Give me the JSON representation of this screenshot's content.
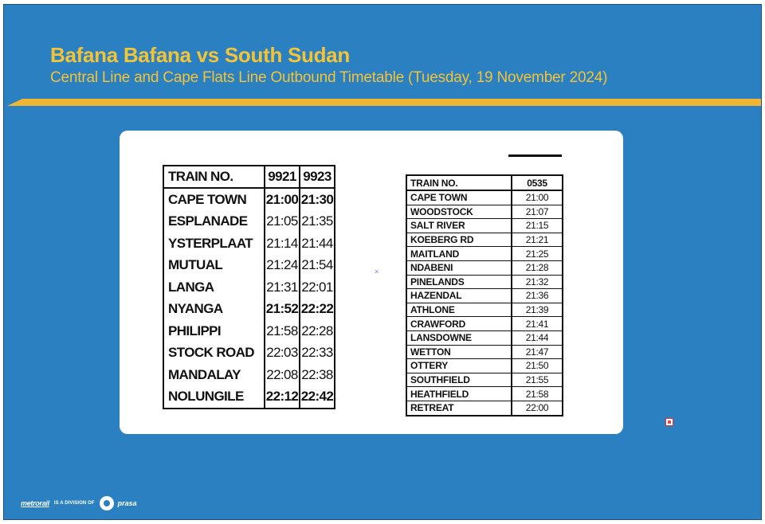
{
  "header": {
    "title": "Bafana Bafana vs South Sudan",
    "subtitle": "Central Line and Cape Flats Line Outbound Timetable (Tuesday, 19 November 2024)"
  },
  "central_line": {
    "header_label": "TRAIN NO.",
    "trains": [
      "9921",
      "9923"
    ],
    "rows": [
      {
        "station": "CAPE TOWN",
        "t1": "21:00",
        "t2": "21:30",
        "bold": true
      },
      {
        "station": "ESPLANADE",
        "t1": "21:05",
        "t2": "21:35",
        "bold": false
      },
      {
        "station": "YSTERPLAAT",
        "t1": "21:14",
        "t2": "21:44",
        "bold": false
      },
      {
        "station": "MUTUAL",
        "t1": "21:24",
        "t2": "21:54",
        "bold": false
      },
      {
        "station": "LANGA",
        "t1": "21:31",
        "t2": "22:01",
        "bold": false
      },
      {
        "station": "NYANGA",
        "t1": "21:52",
        "t2": "22:22",
        "bold": true
      },
      {
        "station": "PHILIPPI",
        "t1": "21:58",
        "t2": "22:28",
        "bold": false
      },
      {
        "station": "STOCK ROAD",
        "t1": "22:03",
        "t2": "22:33",
        "bold": false
      },
      {
        "station": "MANDALAY",
        "t1": "22:08",
        "t2": "22:38",
        "bold": false
      },
      {
        "station": "NOLUNGILE",
        "t1": "22:12",
        "t2": "22:42",
        "bold": true
      }
    ]
  },
  "cape_flats_line": {
    "header_label": "TRAIN NO.",
    "train": "0535",
    "rows": [
      {
        "station": "CAPE TOWN",
        "time": "21:00"
      },
      {
        "station": "WOODSTOCK",
        "time": "21:07"
      },
      {
        "station": "SALT RIVER",
        "time": "21:15"
      },
      {
        "station": "KOEBERG RD",
        "time": "21:21"
      },
      {
        "station": "MAITLAND",
        "time": "21:25"
      },
      {
        "station": "NDABENI",
        "time": "21:28"
      },
      {
        "station": "PINELANDS",
        "time": "21:32"
      },
      {
        "station": "HAZENDAL",
        "time": "21:36"
      },
      {
        "station": "ATHLONE",
        "time": "21:39"
      },
      {
        "station": "CRAWFORD",
        "time": "21:41"
      },
      {
        "station": "LANSDOWNE",
        "time": "21:44"
      },
      {
        "station": "WETTON",
        "time": "21:47"
      },
      {
        "station": "OTTERY",
        "time": "21:50"
      },
      {
        "station": "SOUTHFIELD",
        "time": "21:55"
      },
      {
        "station": "HEATHFIELD",
        "time": "21:58"
      },
      {
        "station": "RETREAT",
        "time": "22:00"
      }
    ]
  },
  "footer": {
    "brand": "metrorail",
    "division_text": "IS A DIVISION OF",
    "parent": "prasa"
  },
  "colors": {
    "background": "#2a80c1",
    "accent_gold": "#f3c338"
  }
}
